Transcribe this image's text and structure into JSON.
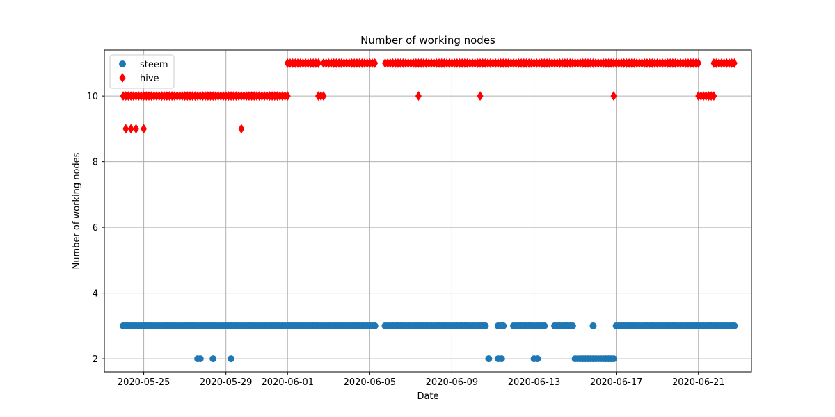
{
  "chart_data": {
    "type": "scatter",
    "title": "Number of working nodes",
    "xlabel": "Date",
    "ylabel": "Number of working nodes",
    "xlim": [
      "2020-05-23T02:00",
      "2020-06-23T14:00"
    ],
    "ylim": [
      1.6,
      11.4
    ],
    "x_ticks": [
      "2020-05-25",
      "2020-05-29",
      "2020-06-01",
      "2020-06-05",
      "2020-06-09",
      "2020-06-13",
      "2020-06-17",
      "2020-06-21"
    ],
    "y_ticks": [
      2,
      4,
      6,
      8,
      10
    ],
    "grid": true,
    "legend_position": "top-left",
    "series": [
      {
        "name": "steem",
        "marker": "circle",
        "color": "#1f77b4",
        "segments": [
          {
            "start": "2020-05-24T00:00",
            "end": "2020-06-05T06:00",
            "step_hours": 3,
            "y": 3
          },
          {
            "start": "2020-06-05T18:00",
            "end": "2020-06-10T15:00",
            "step_hours": 3,
            "y": 3
          },
          {
            "start": "2020-06-11T06:00",
            "end": "2020-06-11T12:00",
            "step_hours": 3,
            "y": 3
          },
          {
            "start": "2020-06-12T00:00",
            "end": "2020-06-13T12:00",
            "step_hours": 3,
            "y": 3
          },
          {
            "start": "2020-06-14T00:00",
            "end": "2020-06-14T21:00",
            "step_hours": 3,
            "y": 3
          },
          {
            "start": "2020-06-17T00:00",
            "end": "2020-06-22T18:00",
            "step_hours": 3,
            "y": 3
          },
          {
            "start": "2020-06-15T00:00",
            "end": "2020-06-16T21:00",
            "step_hours": 3,
            "y": 2
          }
        ],
        "points": [
          {
            "x": "2020-06-15T21:00",
            "y": 3
          },
          {
            "x": "2020-05-27T15:00",
            "y": 2
          },
          {
            "x": "2020-05-27T18:00",
            "y": 2
          },
          {
            "x": "2020-05-28T09:00",
            "y": 2
          },
          {
            "x": "2020-05-29T06:00",
            "y": 2
          },
          {
            "x": "2020-06-10T19:00",
            "y": 2
          },
          {
            "x": "2020-06-11T06:00",
            "y": 2
          },
          {
            "x": "2020-06-11T10:00",
            "y": 2
          },
          {
            "x": "2020-06-13T00:00",
            "y": 2
          },
          {
            "x": "2020-06-13T04:00",
            "y": 2
          }
        ]
      },
      {
        "name": "hive",
        "marker": "diamond",
        "color": "#ff0000",
        "segments": [
          {
            "start": "2020-05-24T00:00",
            "end": "2020-06-01T00:00",
            "step_hours": 3,
            "y": 10
          },
          {
            "start": "2020-06-02T12:00",
            "end": "2020-06-02T18:00",
            "step_hours": 3,
            "y": 10
          },
          {
            "start": "2020-06-21T00:00",
            "end": "2020-06-21T18:00",
            "step_hours": 3,
            "y": 10
          },
          {
            "start": "2020-06-01T00:00",
            "end": "2020-06-02T12:00",
            "step_hours": 3,
            "y": 11
          },
          {
            "start": "2020-06-02T18:00",
            "end": "2020-06-05T06:00",
            "step_hours": 3,
            "y": 11
          },
          {
            "start": "2020-06-05T18:00",
            "end": "2020-06-21T00:00",
            "step_hours": 3,
            "y": 11
          },
          {
            "start": "2020-06-21T18:00",
            "end": "2020-06-22T18:00",
            "step_hours": 3,
            "y": 11
          }
        ],
        "points": [
          {
            "x": "2020-05-24T03:00",
            "y": 9
          },
          {
            "x": "2020-05-24T09:00",
            "y": 9
          },
          {
            "x": "2020-05-24T15:00",
            "y": 9
          },
          {
            "x": "2020-05-25T00:00",
            "y": 9
          },
          {
            "x": "2020-05-29T18:00",
            "y": 9
          },
          {
            "x": "2020-06-07T09:00",
            "y": 10
          },
          {
            "x": "2020-06-10T09:00",
            "y": 10
          },
          {
            "x": "2020-06-16T21:00",
            "y": 10
          }
        ]
      }
    ]
  }
}
